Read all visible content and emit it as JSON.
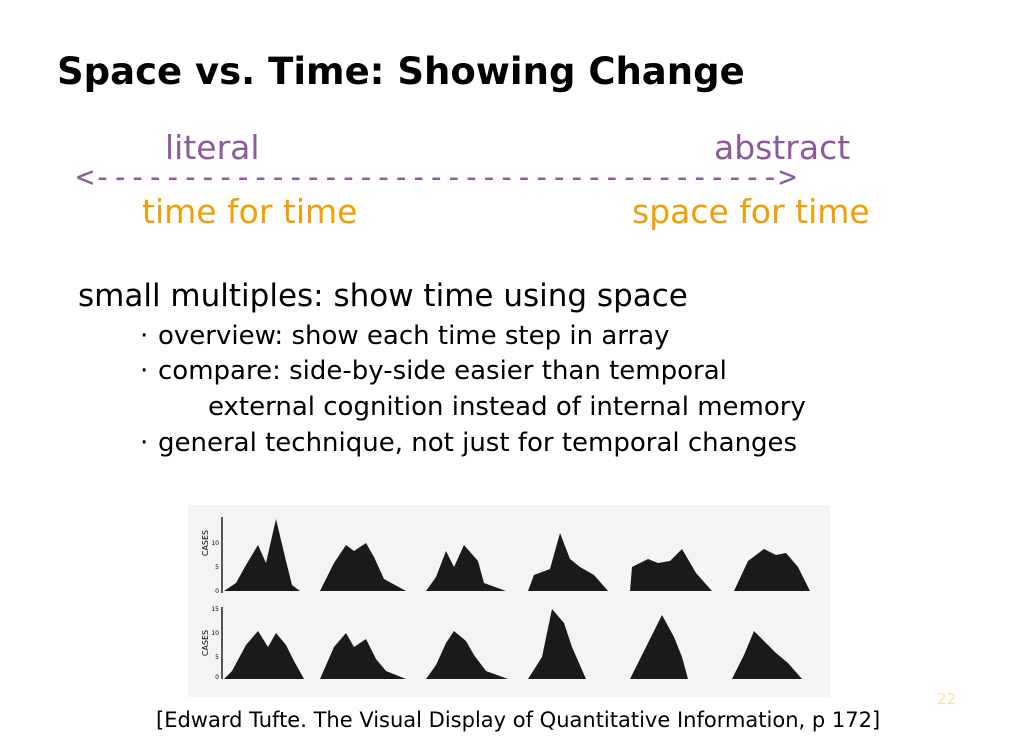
{
  "slide": {
    "title": "Space vs. Time: Showing Change",
    "spectrum": {
      "left_top": "literal",
      "right_top": "abstract",
      "arrow": "<--------------------------------------->",
      "left_bottom": "time for time",
      "right_bottom": "space for time"
    },
    "heading": "small multiples: show time using space",
    "bullets": [
      {
        "marker": "·",
        "text": "overview: show each time step in array"
      },
      {
        "marker": "·",
        "text": "compare: side-by-side easier than temporal"
      },
      {
        "marker": "",
        "text": "external cognition instead of internal memory"
      },
      {
        "marker": "·",
        "text": "general technique, not just for temporal changes"
      }
    ],
    "figure": {
      "axis_label_top": "CASES",
      "axis_label_bottom": "CASES",
      "ticks_top": [
        "10",
        "5",
        "0"
      ],
      "ticks_bottom": [
        "15",
        "10",
        "5",
        "0"
      ]
    },
    "caption": "[Edward Tufte. The Visual Display of Quantitative Information, p 172]",
    "page_number": "22"
  }
}
